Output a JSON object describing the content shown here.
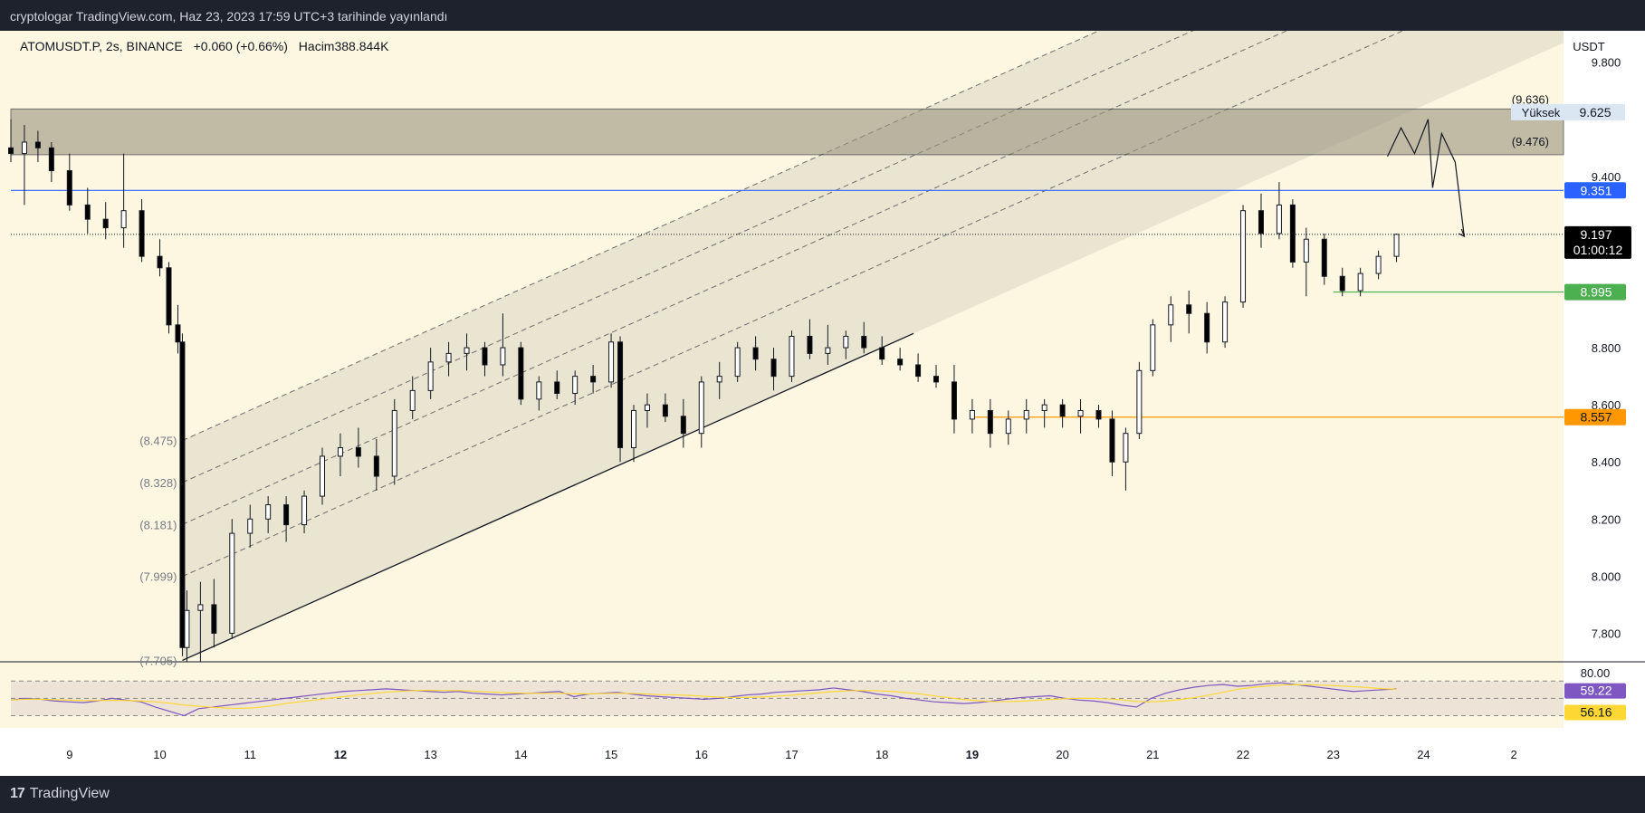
{
  "header": {
    "publish_text": "cryptologar TradingView.com, Haz 23, 2023 17:59 UTC+3 tarihinde yayınlandı"
  },
  "legend": {
    "symbol": "ATOMUSDT.P, 2s, BINANCE",
    "change": "+0.060 (+0.66%)",
    "volume_label": "Hacim",
    "volume": "388.844K"
  },
  "footer": {
    "brand": "TradingView",
    "brand_icon": "tradingview-logo-icon"
  },
  "colors": {
    "background": "#fdf6e1",
    "up": "#ffffff",
    "down": "#000000",
    "blue": "#2962ff",
    "green": "#4caf50",
    "orange": "#ff9800",
    "rsi": "#7e57c2",
    "rsi_ma": "#fdd835"
  },
  "chart_data": {
    "type": "candlestick",
    "currency": "USDT",
    "x_labels": [
      {
        "d": 9,
        "label": "9"
      },
      {
        "d": 10,
        "label": "10"
      },
      {
        "d": 11,
        "label": "11"
      },
      {
        "d": 12,
        "label": "12"
      },
      {
        "d": 13,
        "label": "13"
      },
      {
        "d": 14,
        "label": "14"
      },
      {
        "d": 15,
        "label": "15"
      },
      {
        "d": 16,
        "label": "16"
      },
      {
        "d": 17,
        "label": "17"
      },
      {
        "d": 18,
        "label": "18"
      },
      {
        "d": 19,
        "label": "19"
      },
      {
        "d": 20,
        "label": "20"
      },
      {
        "d": 21,
        "label": "21"
      },
      {
        "d": 22,
        "label": "22"
      },
      {
        "d": 23,
        "label": "23"
      },
      {
        "d": 24,
        "label": "24"
      },
      {
        "d": 25,
        "label": "2"
      }
    ],
    "x_range": [
      8.35,
      25.55
    ],
    "y_axis_ticks": [
      "7.800",
      "8.000",
      "8.200",
      "8.400",
      "8.600",
      "8.800",
      "9.400",
      "9.800"
    ],
    "y_range": [
      7.7,
      9.91
    ],
    "current_price": "9.197",
    "countdown": "01:00:12",
    "price_levels": [
      {
        "label": "9.351",
        "color": "#2962ff"
      },
      {
        "label": "8.995",
        "color": "#4caf50"
      },
      {
        "label": "8.557",
        "color": "#ff9800"
      }
    ],
    "resistance_zone": [
      9.476,
      9.636
    ],
    "zone_labels": [
      "(9.636)",
      "(9.476)"
    ],
    "high_marker": {
      "label": "Yüksek",
      "value": "9.625"
    },
    "fib_channel_labels": [
      "(8.475)",
      "(8.328)",
      "(8.181)",
      "(7.999)",
      "(7.705)"
    ],
    "rsi": {
      "ticks": [
        "80.00"
      ],
      "values": [
        "59.22",
        "56.16"
      ]
    },
    "candles": [
      [
        8.35,
        9.5,
        9.6,
        9.45,
        9.48
      ],
      [
        8.5,
        9.48,
        9.58,
        9.3,
        9.52
      ],
      [
        8.65,
        9.52,
        9.56,
        9.45,
        9.5
      ],
      [
        8.8,
        9.5,
        9.52,
        9.38,
        9.42
      ],
      [
        9.0,
        9.42,
        9.48,
        9.28,
        9.3
      ],
      [
        9.2,
        9.3,
        9.36,
        9.2,
        9.25
      ],
      [
        9.4,
        9.25,
        9.31,
        9.18,
        9.22
      ],
      [
        9.6,
        9.22,
        9.48,
        9.15,
        9.28
      ],
      [
        9.8,
        9.28,
        9.32,
        9.1,
        9.12
      ],
      [
        10.0,
        9.12,
        9.18,
        9.05,
        9.08
      ],
      [
        10.1,
        9.08,
        9.1,
        8.85,
        8.88
      ],
      [
        10.2,
        8.88,
        8.95,
        8.78,
        8.82
      ],
      [
        10.25,
        8.82,
        8.85,
        7.72,
        7.75
      ],
      [
        10.3,
        7.75,
        7.95,
        7.7,
        7.88
      ],
      [
        10.45,
        7.88,
        7.98,
        7.7,
        7.9
      ],
      [
        10.6,
        7.9,
        7.99,
        7.75,
        7.8
      ],
      [
        10.8,
        7.8,
        8.2,
        7.78,
        8.15
      ],
      [
        11.0,
        8.15,
        8.25,
        8.1,
        8.2
      ],
      [
        11.2,
        8.2,
        8.28,
        8.15,
        8.25
      ],
      [
        11.4,
        8.25,
        8.28,
        8.12,
        8.18
      ],
      [
        11.6,
        8.18,
        8.3,
        8.15,
        8.28
      ],
      [
        11.8,
        8.28,
        8.45,
        8.25,
        8.42
      ],
      [
        12.0,
        8.42,
        8.5,
        8.35,
        8.45
      ],
      [
        12.2,
        8.45,
        8.52,
        8.38,
        8.42
      ],
      [
        12.4,
        8.42,
        8.48,
        8.3,
        8.35
      ],
      [
        12.6,
        8.35,
        8.62,
        8.32,
        8.58
      ],
      [
        12.8,
        8.58,
        8.7,
        8.55,
        8.65
      ],
      [
        13.0,
        8.65,
        8.8,
        8.62,
        8.75
      ],
      [
        13.2,
        8.75,
        8.82,
        8.7,
        8.78
      ],
      [
        13.4,
        8.78,
        8.85,
        8.72,
        8.8
      ],
      [
        13.6,
        8.8,
        8.82,
        8.7,
        8.74
      ],
      [
        13.8,
        8.74,
        8.92,
        8.7,
        8.8
      ],
      [
        14.0,
        8.8,
        8.82,
        8.6,
        8.62
      ],
      [
        14.2,
        8.62,
        8.7,
        8.58,
        8.68
      ],
      [
        14.4,
        8.68,
        8.72,
        8.62,
        8.64
      ],
      [
        14.6,
        8.64,
        8.72,
        8.6,
        8.7
      ],
      [
        14.8,
        8.7,
        8.74,
        8.64,
        8.68
      ],
      [
        15.0,
        8.68,
        8.85,
        8.66,
        8.82
      ],
      [
        15.1,
        8.82,
        8.84,
        8.4,
        8.45
      ],
      [
        15.25,
        8.45,
        8.6,
        8.4,
        8.58
      ],
      [
        15.4,
        8.58,
        8.64,
        8.52,
        8.6
      ],
      [
        15.6,
        8.6,
        8.64,
        8.54,
        8.56
      ],
      [
        15.8,
        8.56,
        8.62,
        8.45,
        8.5
      ],
      [
        16.0,
        8.5,
        8.7,
        8.45,
        8.68
      ],
      [
        16.2,
        8.68,
        8.75,
        8.62,
        8.7
      ],
      [
        16.4,
        8.7,
        8.82,
        8.68,
        8.8
      ],
      [
        16.6,
        8.8,
        8.84,
        8.72,
        8.76
      ],
      [
        16.8,
        8.76,
        8.8,
        8.65,
        8.7
      ],
      [
        17.0,
        8.7,
        8.86,
        8.68,
        8.84
      ],
      [
        17.2,
        8.84,
        8.9,
        8.76,
        8.78
      ],
      [
        17.4,
        8.78,
        8.88,
        8.74,
        8.8
      ],
      [
        17.6,
        8.8,
        8.86,
        8.76,
        8.84
      ],
      [
        17.8,
        8.84,
        8.89,
        8.78,
        8.8
      ],
      [
        18.0,
        8.8,
        8.84,
        8.74,
        8.76
      ],
      [
        18.2,
        8.76,
        8.8,
        8.72,
        8.74
      ],
      [
        18.4,
        8.74,
        8.78,
        8.68,
        8.7
      ],
      [
        18.6,
        8.7,
        8.74,
        8.66,
        8.68
      ],
      [
        18.8,
        8.68,
        8.74,
        8.5,
        8.55
      ],
      [
        19.0,
        8.55,
        8.62,
        8.5,
        8.58
      ],
      [
        19.2,
        8.58,
        8.62,
        8.45,
        8.5
      ],
      [
        19.4,
        8.5,
        8.58,
        8.46,
        8.55
      ],
      [
        19.6,
        8.55,
        8.62,
        8.5,
        8.58
      ],
      [
        19.8,
        8.58,
        8.62,
        8.52,
        8.6
      ],
      [
        20.0,
        8.6,
        8.62,
        8.52,
        8.56
      ],
      [
        20.2,
        8.56,
        8.62,
        8.5,
        8.58
      ],
      [
        20.4,
        8.58,
        8.6,
        8.52,
        8.55
      ],
      [
        20.55,
        8.55,
        8.58,
        8.35,
        8.4
      ],
      [
        20.7,
        8.4,
        8.52,
        8.3,
        8.5
      ],
      [
        20.85,
        8.5,
        8.75,
        8.48,
        8.72
      ],
      [
        21.0,
        8.72,
        8.9,
        8.7,
        8.88
      ],
      [
        21.2,
        8.88,
        8.98,
        8.82,
        8.95
      ],
      [
        21.4,
        8.95,
        9.0,
        8.85,
        8.92
      ],
      [
        21.6,
        8.92,
        8.96,
        8.78,
        8.82
      ],
      [
        21.8,
        8.82,
        8.98,
        8.8,
        8.96
      ],
      [
        22.0,
        8.96,
        9.3,
        8.94,
        9.28
      ],
      [
        22.2,
        9.28,
        9.34,
        9.15,
        9.2
      ],
      [
        22.4,
        9.2,
        9.38,
        9.18,
        9.3
      ],
      [
        22.55,
        9.3,
        9.32,
        9.08,
        9.1
      ],
      [
        22.7,
        9.1,
        9.22,
        8.98,
        9.18
      ],
      [
        22.9,
        9.18,
        9.2,
        9.02,
        9.05
      ],
      [
        23.1,
        9.05,
        9.08,
        8.98,
        9.0
      ],
      [
        23.3,
        9.0,
        9.08,
        8.98,
        9.06
      ],
      [
        23.5,
        9.06,
        9.14,
        9.04,
        9.12
      ],
      [
        23.7,
        9.12,
        9.2,
        9.1,
        9.197
      ]
    ],
    "rsi_series": [
      48,
      50,
      49,
      47,
      46,
      45,
      47,
      50,
      48,
      46,
      40,
      35,
      30,
      38,
      40,
      42,
      44,
      46,
      48,
      50,
      52,
      54,
      56,
      58,
      59,
      60,
      61,
      60,
      59,
      58,
      57,
      58,
      56,
      55,
      54,
      55,
      56,
      57,
      58,
      52,
      55,
      56,
      57,
      55,
      53,
      52,
      51,
      50,
      49,
      50,
      52,
      54,
      55,
      57,
      58,
      59,
      60,
      62,
      60,
      58,
      55,
      53,
      50,
      48,
      46,
      45,
      44,
      45,
      47,
      49,
      51,
      52,
      53,
      50,
      48,
      47,
      45,
      42,
      40,
      50,
      56,
      60,
      63,
      65,
      66,
      64,
      65,
      67,
      68,
      66,
      64,
      62,
      60,
      58,
      59,
      60,
      61
    ]
  }
}
